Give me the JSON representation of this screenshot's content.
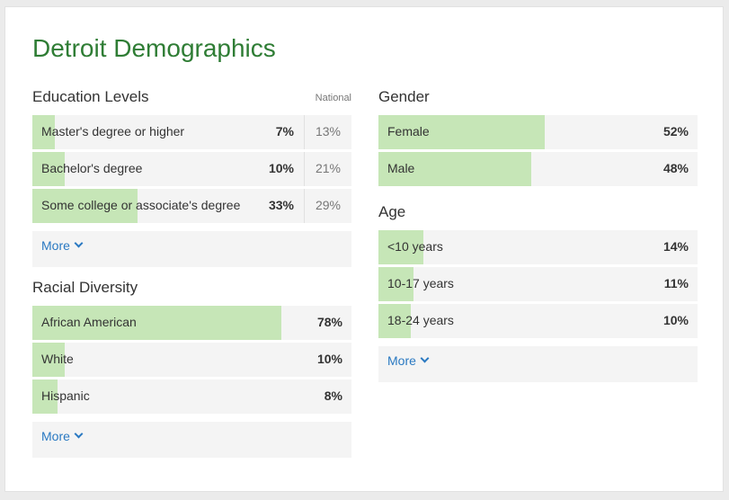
{
  "title": "Detroit Demographics",
  "colors": {
    "title": "#2f7d35",
    "bar": "#c6e6b7",
    "row_bg": "#f4f4f4",
    "link": "#2a79c2"
  },
  "education": {
    "title": "Education Levels",
    "national_label": "National",
    "rows": [
      {
        "label": "Master's degree or higher",
        "value": "7%",
        "national": "13%",
        "fraction": 0.07
      },
      {
        "label": "Bachelor's degree",
        "value": "10%",
        "national": "21%",
        "fraction": 0.1
      },
      {
        "label": "Some college or associate's degree",
        "value": "33%",
        "national": "29%",
        "fraction": 0.33
      }
    ],
    "more": "More"
  },
  "racial": {
    "title": "Racial Diversity",
    "rows": [
      {
        "label": "African American",
        "value": "78%",
        "fraction": 0.78
      },
      {
        "label": "White",
        "value": "10%",
        "fraction": 0.1
      },
      {
        "label": "Hispanic",
        "value": "8%",
        "fraction": 0.08
      }
    ],
    "more": "More"
  },
  "gender": {
    "title": "Gender",
    "rows": [
      {
        "label": "Female",
        "value": "52%",
        "fraction": 0.52
      },
      {
        "label": "Male",
        "value": "48%",
        "fraction": 0.48
      }
    ]
  },
  "age": {
    "title": "Age",
    "rows": [
      {
        "label": "<10 years",
        "value": "14%",
        "fraction": 0.14
      },
      {
        "label": "10-17 years",
        "value": "11%",
        "fraction": 0.11
      },
      {
        "label": "18-24 years",
        "value": "10%",
        "fraction": 0.1
      }
    ],
    "more": "More"
  }
}
